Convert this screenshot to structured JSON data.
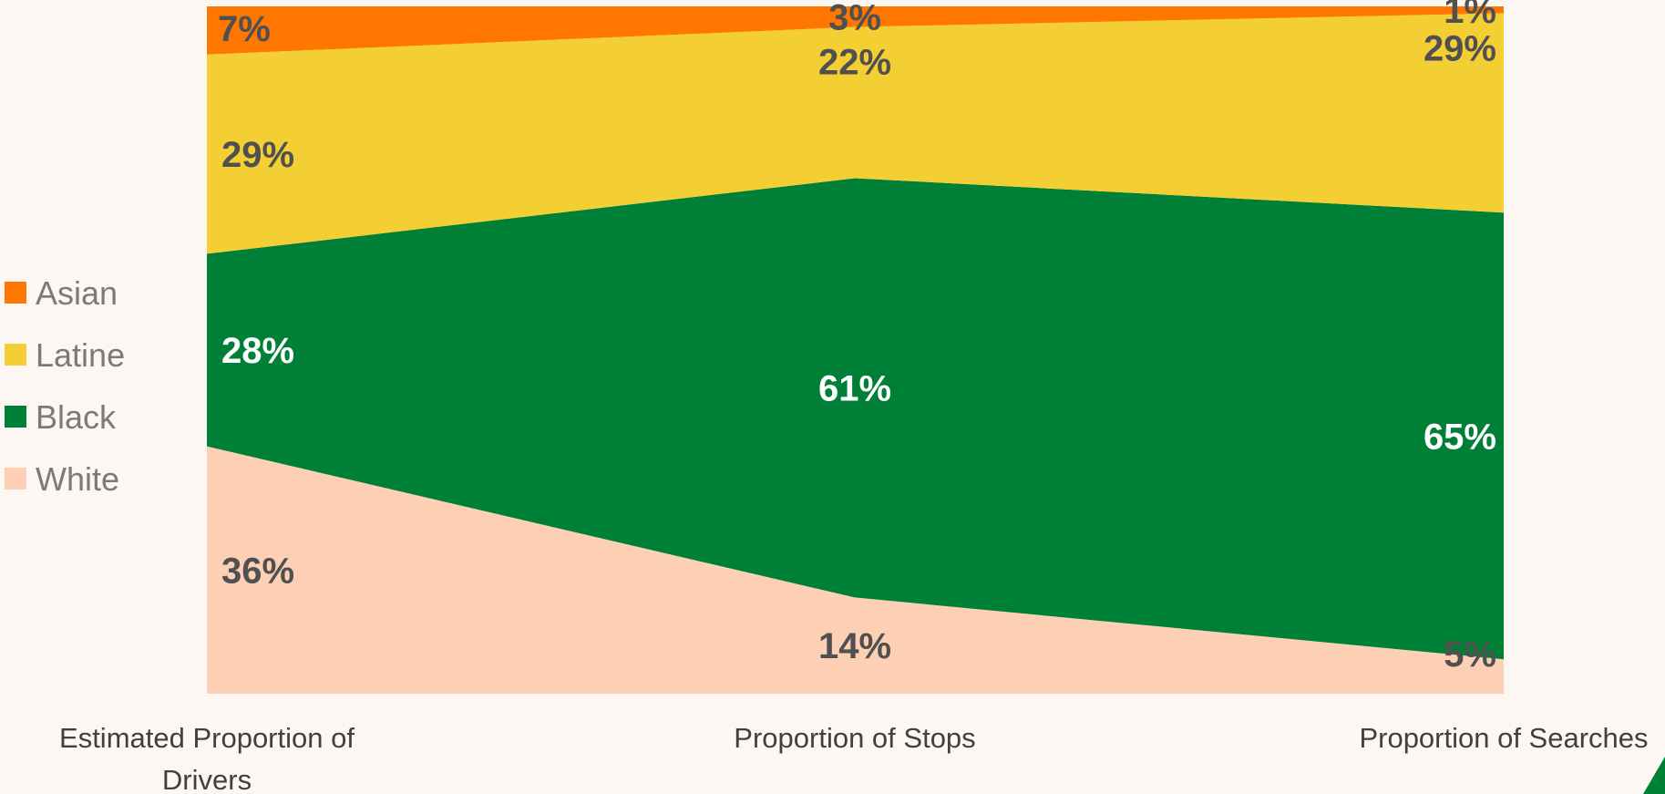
{
  "chart_data": {
    "type": "area",
    "stacked": true,
    "percent": true,
    "categories": [
      "Estimated Proportion of Drivers",
      "Proportion of Stops",
      "Proportion of Searches"
    ],
    "series": [
      {
        "name": "White",
        "values": [
          36,
          14,
          5
        ],
        "labels": [
          "36%",
          "14%",
          "5%"
        ],
        "color": "#fdd0b5",
        "label_color": "#505050"
      },
      {
        "name": "Black",
        "values": [
          28,
          61,
          65
        ],
        "labels": [
          "28%",
          "61%",
          "65%"
        ],
        "color": "#008037",
        "label_color": "#ffffff"
      },
      {
        "name": "Latine",
        "values": [
          29,
          22,
          29
        ],
        "labels": [
          "29%",
          "22%",
          "29%"
        ],
        "color": "#f4cf33",
        "label_color": "#505050"
      },
      {
        "name": "Asian",
        "values": [
          7,
          3,
          1
        ],
        "labels": [
          "7%",
          "3%",
          "1%"
        ],
        "color": "#ff7700",
        "label_color": "#505050"
      }
    ],
    "legend": {
      "position": "left",
      "entries": [
        "Asian",
        "Latine",
        "Black",
        "White"
      ]
    },
    "ylim": [
      0,
      100
    ],
    "grid": false,
    "title": "",
    "xlabel": "",
    "ylabel": ""
  },
  "colors": {
    "background": "#fcf7f2",
    "accent_green": "#008037"
  }
}
